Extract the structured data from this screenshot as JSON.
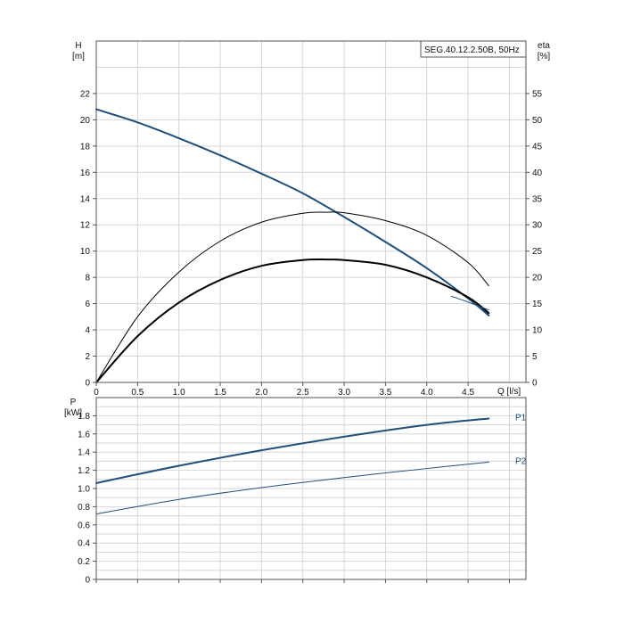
{
  "chart_data": [
    {
      "type": "line",
      "model_label": "SEG.40.12.2.50B, 50Hz",
      "x_axis": {
        "label": "Q [l/s]",
        "min": 0,
        "max": 5.2,
        "ticks": [
          0,
          0.5,
          1.0,
          1.5,
          2.0,
          2.5,
          3.0,
          3.5,
          4.0,
          4.5
        ],
        "tick_labels": [
          "0",
          "0.5",
          "1.0",
          "1.5",
          "2.0",
          "2.5",
          "3.0",
          "3.5",
          "4.0",
          "4.5"
        ]
      },
      "y_axis_left": {
        "label": "H",
        "unit": "[m]",
        "min": 0,
        "max": 26,
        "ticks": [
          0,
          2,
          4,
          6,
          8,
          10,
          12,
          14,
          16,
          18,
          20,
          22
        ],
        "tick_labels": [
          "0",
          "2",
          "4",
          "6",
          "8",
          "10",
          "12",
          "14",
          "16",
          "18",
          "20",
          "22"
        ]
      },
      "y_axis_right": {
        "label": "eta",
        "unit": "[%]",
        "min": 0,
        "max": 65,
        "ticks": [
          0,
          5,
          10,
          15,
          20,
          25,
          30,
          35,
          40,
          45,
          50,
          55
        ],
        "tick_labels": [
          "0",
          "5",
          "10",
          "15",
          "20",
          "25",
          "30",
          "35",
          "40",
          "45",
          "50",
          "55"
        ]
      },
      "grid": true,
      "series": [
        {
          "name": "",
          "axis": "left",
          "color": "#1f4e79",
          "width": 2,
          "x": [
            0,
            0.5,
            1.0,
            1.5,
            2.0,
            2.5,
            3.0,
            3.5,
            4.0,
            4.5,
            4.75
          ],
          "y": [
            20.8,
            19.8,
            18.6,
            17.3,
            15.9,
            14.4,
            12.6,
            10.7,
            8.7,
            6.4,
            5.1
          ]
        },
        {
          "name": "",
          "axis": "right",
          "color": "#000000",
          "width": 1,
          "x": [
            0,
            0.5,
            1.0,
            1.5,
            2.0,
            2.5,
            2.8,
            3.0,
            3.5,
            4.0,
            4.5,
            4.75
          ],
          "y": [
            0,
            12.5,
            21.0,
            26.9,
            30.5,
            32.2,
            32.4,
            32.3,
            30.8,
            28.0,
            22.8,
            18.4
          ]
        },
        {
          "name": "",
          "axis": "right",
          "color": "#000000",
          "width": 2,
          "x": [
            0,
            0.5,
            1.0,
            1.5,
            2.0,
            2.5,
            2.8,
            3.0,
            3.5,
            4.0,
            4.5,
            4.75
          ],
          "y": [
            0,
            8.8,
            15.2,
            19.5,
            22.2,
            23.3,
            23.4,
            23.3,
            22.4,
            20.0,
            16.2,
            13.2
          ]
        },
        {
          "name": "",
          "axis": "right",
          "color": "#1f4e79",
          "width": 1,
          "x": [
            4.3,
            4.5,
            4.75
          ],
          "y": [
            16.4,
            15.3,
            13.8
          ]
        }
      ]
    },
    {
      "type": "line",
      "x_axis": {
        "min": 0,
        "max": 5.2
      },
      "y_axis_left": {
        "label": "P",
        "unit": "[kW]",
        "min": 0,
        "max": 2.0,
        "ticks": [
          0,
          0.2,
          0.4,
          0.6,
          0.8,
          1.0,
          1.2,
          1.4,
          1.6,
          1.8
        ],
        "tick_labels": [
          "0",
          "0.2",
          "0.4",
          "0.6",
          "0.8",
          "1.0",
          "1.2",
          "1.4",
          "1.6",
          "1.8"
        ]
      },
      "grid": true,
      "series": [
        {
          "name": "P1",
          "color": "#1f4e79",
          "width": 2,
          "x": [
            0,
            1.0,
            2.0,
            3.0,
            4.0,
            4.75
          ],
          "y": [
            1.06,
            1.25,
            1.42,
            1.57,
            1.7,
            1.77
          ]
        },
        {
          "name": "P2",
          "color": "#1f4e79",
          "width": 1,
          "x": [
            0,
            1.0,
            2.0,
            3.0,
            4.0,
            4.75
          ],
          "y": [
            0.72,
            0.88,
            1.01,
            1.12,
            1.22,
            1.29
          ]
        }
      ]
    }
  ]
}
